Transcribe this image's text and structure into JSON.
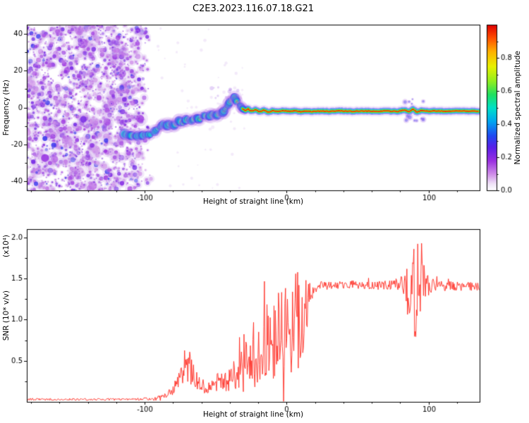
{
  "chart_data": [
    {
      "type": "heatmap",
      "title": "C2E3.2023.116.07.18.G21",
      "xlabel": "Height of straight line (km)",
      "ylabel": "Frequency (Hz)",
      "xlim": [
        -183,
        136
      ],
      "ylim": [
        -45,
        45
      ],
      "xticks": [
        -100,
        0,
        100
      ],
      "yticks": [
        -40,
        -20,
        0,
        20,
        40
      ],
      "grid": false,
      "colorbar": {
        "label": "Normalized spectral amplitude",
        "ticks": [
          0.0,
          0.2,
          0.4,
          0.6,
          0.8
        ],
        "range": [
          0,
          1
        ],
        "colormap": [
          [
            0.0,
            "#ffffff"
          ],
          [
            0.04,
            "#f0e4f8"
          ],
          [
            0.1,
            "#cf8ee8"
          ],
          [
            0.18,
            "#9a30e0"
          ],
          [
            0.26,
            "#5a20e8"
          ],
          [
            0.33,
            "#2048f0"
          ],
          [
            0.42,
            "#00a8f0"
          ],
          [
            0.5,
            "#00e0c8"
          ],
          [
            0.58,
            "#20e060"
          ],
          [
            0.66,
            "#90ee20"
          ],
          [
            0.75,
            "#e8f000"
          ],
          [
            0.84,
            "#ffb000"
          ],
          [
            0.92,
            "#ff5000"
          ],
          [
            1.0,
            "#e00000"
          ]
        ]
      },
      "noise_region": {
        "x_range": [
          -183,
          -95
        ],
        "description": "broadband speckle noise, low normalized amplitude (0.05-0.3)",
        "base_color": "#9040d8"
      },
      "isolated_segment": {
        "core_amplitude": 0.5,
        "points": [
          [
            -114,
            -14.5
          ],
          [
            -110,
            -15.2
          ],
          [
            -106,
            -15.6
          ],
          [
            -102,
            -15.2
          ],
          [
            -98,
            -14.6
          ],
          [
            -95,
            -14.9
          ]
        ]
      },
      "main_ridge": {
        "core_amplitude_start": 0.5,
        "core_amplitude_flat": 0.97,
        "flat_from_x": -30,
        "points": [
          [
            -93,
            -13
          ],
          [
            -90,
            -11
          ],
          [
            -87,
            -9
          ],
          [
            -85,
            -10.5
          ],
          [
            -82,
            -8.5
          ],
          [
            -79,
            -9.8
          ],
          [
            -76,
            -7
          ],
          [
            -73,
            -8.6
          ],
          [
            -70,
            -6
          ],
          [
            -67,
            -7.4
          ],
          [
            -64,
            -5.2
          ],
          [
            -61,
            -6.6
          ],
          [
            -58,
            -4.2
          ],
          [
            -55,
            -5.4
          ],
          [
            -52,
            -3.2
          ],
          [
            -49,
            -4.4
          ],
          [
            -47,
            -2
          ],
          [
            -45,
            -3
          ],
          [
            -43,
            -0.5
          ],
          [
            -41,
            1.6
          ],
          [
            -39,
            4.5
          ],
          [
            -37,
            6
          ],
          [
            -35,
            3.2
          ],
          [
            -33,
            1.2
          ],
          [
            -31,
            -0.6
          ],
          [
            -29,
            -1.6
          ],
          [
            -27,
            -0.8
          ],
          [
            -25,
            -2
          ],
          [
            -22,
            -1.2
          ],
          [
            -19,
            -2.3
          ],
          [
            -16,
            -1.5
          ],
          [
            -13,
            -2.4
          ],
          [
            -10,
            -1.8
          ],
          [
            -6,
            -2.3
          ],
          [
            -2,
            -1.6
          ],
          [
            2,
            -2.2
          ],
          [
            6,
            -1.8
          ],
          [
            10,
            -2.3
          ],
          [
            14,
            -1.8
          ],
          [
            18,
            -2.2
          ],
          [
            24,
            -1.9
          ],
          [
            30,
            -2.1
          ],
          [
            38,
            -1.8
          ],
          [
            46,
            -2.1
          ],
          [
            54,
            -1.9
          ],
          [
            62,
            -2.1
          ],
          [
            70,
            -1.9
          ],
          [
            78,
            -2.1
          ],
          [
            83,
            -1.4
          ],
          [
            86,
            -2.4
          ],
          [
            89,
            -0.9
          ],
          [
            92,
            -2.5
          ],
          [
            95,
            -1.5
          ],
          [
            98,
            -2.0
          ],
          [
            104,
            -1.9
          ],
          [
            112,
            -2.0
          ],
          [
            120,
            -1.9
          ],
          [
            128,
            -2.0
          ],
          [
            136,
            -1.9
          ]
        ],
        "disturbance_x_range": [
          83,
          97
        ]
      }
    },
    {
      "type": "line",
      "xlabel": "Height of straight line (km)",
      "ylabel": "SNR (10* v/v)",
      "y_scale_note": "(x10⁴)",
      "xlim": [
        -183,
        136
      ],
      "ylim": [
        0,
        2.1
      ],
      "xticks": [
        -100,
        0,
        100
      ],
      "yticks": [
        0.5,
        1.0,
        1.5,
        2.0
      ],
      "grid": false,
      "series": [
        {
          "name": "SNR",
          "color": "#ff2a20",
          "envelope_note": "triplets of [height_km, mean_snr, noise_amplitude] in units of 1e4 v/v",
          "envelope": [
            [
              -183,
              0.03,
              0.012
            ],
            [
              -110,
              0.03,
              0.012
            ],
            [
              -95,
              0.04,
              0.02
            ],
            [
              -88,
              0.06,
              0.03
            ],
            [
              -83,
              0.1,
              0.05
            ],
            [
              -79,
              0.18,
              0.08
            ],
            [
              -75,
              0.28,
              0.12
            ],
            [
              -71,
              0.45,
              0.18
            ],
            [
              -68,
              0.42,
              0.2
            ],
            [
              -65,
              0.3,
              0.14
            ],
            [
              -61,
              0.2,
              0.09
            ],
            [
              -56,
              0.18,
              0.08
            ],
            [
              -51,
              0.22,
              0.1
            ],
            [
              -46,
              0.26,
              0.12
            ],
            [
              -42,
              0.24,
              0.12
            ],
            [
              -38,
              0.3,
              0.18
            ],
            [
              -34,
              0.45,
              0.35
            ],
            [
              -31,
              0.6,
              0.5
            ],
            [
              -28,
              0.5,
              0.4
            ],
            [
              -25,
              0.65,
              0.5
            ],
            [
              -22,
              0.6,
              0.45
            ],
            [
              -19,
              0.7,
              0.5
            ],
            [
              -16,
              0.65,
              0.48
            ],
            [
              -13,
              0.75,
              0.5
            ],
            [
              -10,
              0.7,
              0.48
            ],
            [
              -7,
              0.85,
              0.55
            ],
            [
              -4,
              0.8,
              0.5
            ],
            [
              -1,
              0.9,
              0.58
            ],
            [
              2,
              0.85,
              0.55
            ],
            [
              5,
              1.0,
              0.62
            ],
            [
              8,
              1.1,
              0.7
            ],
            [
              11,
              0.95,
              0.55
            ],
            [
              14,
              1.15,
              0.35
            ],
            [
              17,
              1.3,
              0.15
            ],
            [
              20,
              1.4,
              0.07
            ],
            [
              30,
              1.42,
              0.05
            ],
            [
              45,
              1.43,
              0.05
            ],
            [
              60,
              1.42,
              0.05
            ],
            [
              75,
              1.42,
              0.06
            ],
            [
              82,
              1.44,
              0.1
            ],
            [
              86,
              1.45,
              0.35
            ],
            [
              89,
              1.35,
              0.6
            ],
            [
              92,
              1.3,
              0.65
            ],
            [
              95,
              1.35,
              0.6
            ],
            [
              98,
              1.4,
              0.3
            ],
            [
              101,
              1.42,
              0.12
            ],
            [
              106,
              1.41,
              0.06
            ],
            [
              136,
              1.4,
              0.05
            ]
          ]
        }
      ]
    }
  ]
}
